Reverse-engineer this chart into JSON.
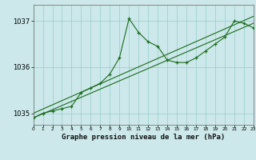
{
  "title": "Graphe pression niveau de la mer (hPa)",
  "bg_color": "#cce8ea",
  "grid_color": "#99cccc",
  "line_color": "#1a6b1a",
  "xlim": [
    0,
    23
  ],
  "ylim": [
    1034.75,
    1037.35
  ],
  "yticks": [
    1035,
    1036,
    1037
  ],
  "xticks": [
    0,
    1,
    2,
    3,
    4,
    5,
    6,
    7,
    8,
    9,
    10,
    11,
    12,
    13,
    14,
    15,
    16,
    17,
    18,
    19,
    20,
    21,
    22,
    23
  ],
  "trend1": {
    "x": [
      0,
      23
    ],
    "y": [
      1035.0,
      1037.1
    ]
  },
  "trend2": {
    "x": [
      0,
      23
    ],
    "y": [
      1034.9,
      1036.95
    ]
  },
  "main": {
    "x": [
      0,
      1,
      2,
      3,
      4,
      5,
      6,
      7,
      8,
      9,
      10,
      11,
      12,
      13,
      14,
      15,
      16,
      17,
      18,
      19,
      20,
      21,
      22,
      23
    ],
    "y": [
      1034.9,
      1035.0,
      1035.05,
      1035.1,
      1035.15,
      1035.45,
      1035.55,
      1035.65,
      1035.85,
      1036.2,
      1037.05,
      1036.75,
      1036.55,
      1036.45,
      1036.15,
      1036.1,
      1036.1,
      1036.2,
      1036.35,
      1036.5,
      1036.65,
      1037.0,
      1036.95,
      1036.85
    ]
  }
}
